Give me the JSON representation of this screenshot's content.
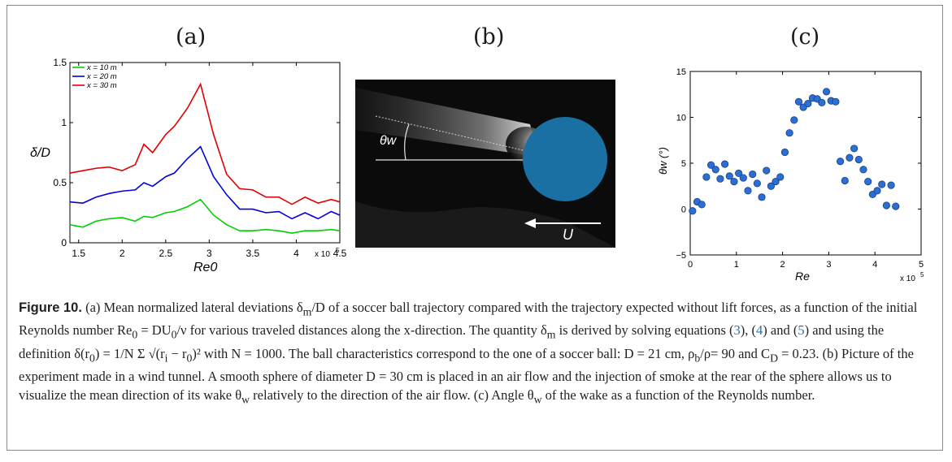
{
  "figure": {
    "panel_a_label": "(a)",
    "panel_b_label": "(b)",
    "panel_c_label": "(c)",
    "caption": {
      "prefix": "Figure 10.",
      "part1": " (a) Mean normalized lateral deviations δ",
      "sub_m": "m",
      "part2": "/D of a soccer ball trajectory compared with the trajectory expected without lift forces, as a function of the initial Reynolds number Re",
      "sub_0": "0",
      "part3": " = DU",
      "sub_0b": "0",
      "part4": "/ν for various traveled distances along the x-direction. The quantity δ",
      "sub_m2": "m",
      "part5": " is derived by solving equations (",
      "ref3": "3",
      "sep1": "), (",
      "ref4": "4",
      "sep2": ") and (",
      "ref5": "5",
      "part6": ") and using the definition δ(r",
      "sub_0c": "0",
      "part7": ") = 1/N Σ",
      "part7b": " √(r",
      "sub_i": "i",
      "part7c": " − r",
      "sub_0d": "0",
      "part7d": ")² with N = 1000. The ball characteristics correspond to the one of a soccer ball: D = 21 cm, ρ",
      "sub_b": "b",
      "part8": "/ρ= 90 and C",
      "sub_D": "D",
      "part9": " = 0.23. (b) Picture of the experiment made in a wind tunnel. A smooth sphere of diameter D = 30 cm is placed in an air flow and the injection of smoke at the rear of the sphere allows us to visualize the mean direction of its wake θ",
      "sub_w": "w",
      "part10": " relatively to the direction of the air flow. (c) Angle θ",
      "sub_w2": "w",
      "part11": " of the wake as a function of the Reynolds number."
    },
    "photo": {
      "theta_label": "θw",
      "u_label": "U",
      "sphere_color": "#1a6fa3"
    }
  },
  "chart_data": [
    {
      "type": "line",
      "xlabel": "Re0",
      "ylabel": "δ/D",
      "x_multiplier_label": "x 10",
      "x_multiplier_exp": "5",
      "xlim": [
        1.4,
        4.5
      ],
      "ylim": [
        0,
        1.5
      ],
      "xticks": [
        1.5,
        2,
        2.5,
        3,
        3.5,
        4,
        4.5
      ],
      "xtick_labels": [
        "1.5",
        "2",
        "2.5",
        "3",
        "3.5",
        "4",
        "4.5"
      ],
      "yticks": [
        0,
        0.5,
        1,
        1.5
      ],
      "ytick_labels": [
        "0",
        "0.5",
        "1",
        "1.5"
      ],
      "legend_position": "top-left",
      "x": [
        1.4,
        1.55,
        1.7,
        1.85,
        2.0,
        2.15,
        2.25,
        2.35,
        2.5,
        2.6,
        2.75,
        2.9,
        3.05,
        3.2,
        3.35,
        3.5,
        3.65,
        3.8,
        3.95,
        4.1,
        4.25,
        4.4,
        4.5
      ],
      "series": [
        {
          "name": "x = 10 m",
          "color": "#00d000",
          "values": [
            0.15,
            0.13,
            0.18,
            0.2,
            0.21,
            0.18,
            0.22,
            0.21,
            0.25,
            0.26,
            0.3,
            0.36,
            0.23,
            0.15,
            0.1,
            0.1,
            0.11,
            0.1,
            0.08,
            0.1,
            0.1,
            0.11,
            0.1
          ]
        },
        {
          "name": "x = 20 m",
          "color": "#0000e0",
          "values": [
            0.34,
            0.33,
            0.38,
            0.41,
            0.43,
            0.44,
            0.5,
            0.47,
            0.55,
            0.58,
            0.7,
            0.8,
            0.55,
            0.4,
            0.28,
            0.28,
            0.25,
            0.26,
            0.2,
            0.25,
            0.2,
            0.26,
            0.23
          ]
        },
        {
          "name": "x = 30 m",
          "color": "#e00000",
          "values": [
            0.58,
            0.6,
            0.62,
            0.63,
            0.6,
            0.65,
            0.82,
            0.75,
            0.9,
            0.97,
            1.12,
            1.32,
            0.9,
            0.57,
            0.45,
            0.44,
            0.38,
            0.38,
            0.32,
            0.38,
            0.33,
            0.36,
            0.34
          ]
        }
      ]
    },
    {
      "type": "scatter",
      "xlabel": "Re",
      "ylabel": "θw (°)",
      "x_multiplier_label": "x 10",
      "x_multiplier_exp": "5",
      "xlim": [
        0,
        5
      ],
      "ylim": [
        -5,
        15
      ],
      "xticks": [
        0,
        1,
        2,
        3,
        4,
        5
      ],
      "xtick_labels": [
        "0",
        "1",
        "2",
        "3",
        "4",
        "5"
      ],
      "yticks": [
        -5,
        0,
        5,
        10,
        15
      ],
      "ytick_labels": [
        "−5",
        "0",
        "5",
        "10",
        "15"
      ],
      "marker_color": "#2b6fd6",
      "x": [
        0.05,
        0.15,
        0.25,
        0.35,
        0.45,
        0.55,
        0.65,
        0.75,
        0.85,
        0.95,
        1.05,
        1.15,
        1.25,
        1.35,
        1.45,
        1.55,
        1.65,
        1.75,
        1.85,
        1.95,
        2.05,
        2.15,
        2.25,
        2.35,
        2.45,
        2.55,
        2.65,
        2.75,
        2.85,
        2.95,
        3.05,
        3.15,
        3.25,
        3.35,
        3.45,
        3.55,
        3.65,
        3.75,
        3.85,
        3.95,
        4.05,
        4.15,
        4.25,
        4.35,
        4.45
      ],
      "y": [
        -0.2,
        0.8,
        0.5,
        3.5,
        4.8,
        4.3,
        3.3,
        4.9,
        3.6,
        3.0,
        3.9,
        3.4,
        2.0,
        3.8,
        2.8,
        1.3,
        4.2,
        2.5,
        3.0,
        3.5,
        6.2,
        8.3,
        9.7,
        11.7,
        11.1,
        11.5,
        12.1,
        12.0,
        11.6,
        12.8,
        11.8,
        11.7,
        5.2,
        3.1,
        5.6,
        6.6,
        5.4,
        4.3,
        3.0,
        1.6,
        2.0,
        2.7,
        0.4,
        2.6,
        0.3
      ]
    }
  ]
}
